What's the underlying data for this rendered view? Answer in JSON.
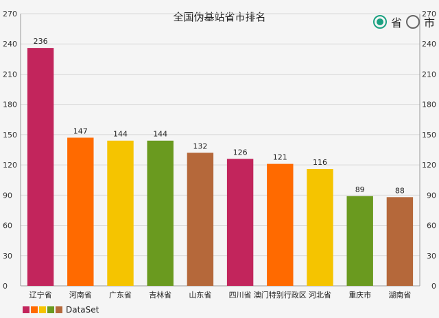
{
  "radio": {
    "options": [
      "省",
      "市"
    ],
    "selected": 0
  },
  "colors": [
    "#c2255c",
    "#ff6a00",
    "#f5c400",
    "#6a9a1f",
    "#b5683a"
  ],
  "chart_data": {
    "type": "bar",
    "title": "全国伪基站省市排名",
    "categories": [
      "辽宁省",
      "河南省",
      "广东省",
      "吉林省",
      "山东省",
      "四川省",
      "澳门特别行政区",
      "河北省",
      "重庆市",
      "湖南省"
    ],
    "series": [
      {
        "name": "DataSet",
        "values": [
          236,
          147,
          144,
          144,
          132,
          126,
          121,
          116,
          89,
          88
        ]
      }
    ],
    "ylim": [
      0,
      270
    ],
    "yticks": [
      0,
      30,
      60,
      90,
      120,
      150,
      180,
      210,
      240,
      270
    ],
    "grid": true,
    "legend": "bottom-left"
  }
}
